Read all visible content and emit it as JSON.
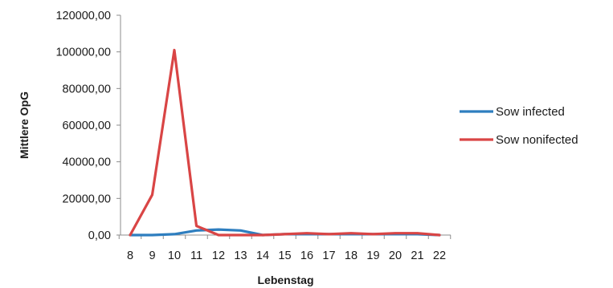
{
  "chart_data": {
    "type": "line",
    "xlabel": "Lebenstag",
    "ylabel": "Mittlere OpG",
    "categories": [
      "8",
      "9",
      "10",
      "11",
      "12",
      "13",
      "14",
      "15",
      "16",
      "17",
      "18",
      "19",
      "20",
      "21",
      "22"
    ],
    "ylim": [
      0,
      120000
    ],
    "yticks": [
      0,
      20000,
      40000,
      60000,
      80000,
      100000,
      120000
    ],
    "ytick_labels": [
      "0,00",
      "20000,00",
      "40000,00",
      "60000,00",
      "80000,00",
      "100000,00",
      "120000,00"
    ],
    "grid": false,
    "legend_position": "right",
    "series": [
      {
        "name": "Sow infected",
        "color": "#2e7ebf",
        "values": [
          0,
          0,
          500,
          2500,
          3000,
          2500,
          0,
          500,
          500,
          500,
          500,
          500,
          500,
          500,
          0
        ]
      },
      {
        "name": "Sow nonifected",
        "color": "#d94545",
        "values": [
          0,
          22000,
          101000,
          5000,
          0,
          0,
          0,
          500,
          1000,
          500,
          1000,
          500,
          1000,
          1000,
          0
        ]
      }
    ]
  }
}
